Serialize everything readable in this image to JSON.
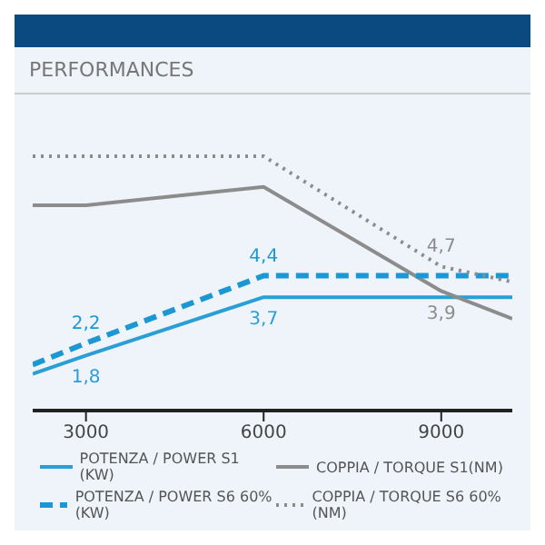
{
  "chart_data": {
    "type": "line",
    "title": "PERFORMANCES",
    "xlim": [
      2100,
      10200
    ],
    "xticks": [
      3000,
      6000,
      9000
    ],
    "legend": "bottom",
    "tick_labels": "x",
    "series": [
      {
        "name": "POTENZA / POWER S1 (KW)",
        "color": "#2a9fd6",
        "line_style": "solid",
        "x": [
          2100,
          3000,
          6000,
          9000,
          10200
        ],
        "values": [
          1.2,
          1.8,
          3.7,
          3.7,
          3.7
        ],
        "value_labels": [
          null,
          "1,8",
          "3,7",
          null,
          null
        ]
      },
      {
        "name": "COPPIA / TORQUE S1(NM)",
        "color": "#8c8c8c",
        "line_style": "solid",
        "x": [
          2100,
          3000,
          6000,
          9000,
          10200
        ],
        "values": [
          6.7,
          6.7,
          7.3,
          3.9,
          3.0
        ],
        "value_labels": [
          null,
          null,
          null,
          "3,9",
          null
        ]
      },
      {
        "name": "POTENZA / POWER S6 60% (KW)",
        "color": "#1b98d4",
        "line_style": "dashed",
        "x": [
          2100,
          3000,
          6000,
          9000,
          10200
        ],
        "values": [
          1.5,
          2.2,
          4.4,
          4.4,
          4.4
        ],
        "value_labels": [
          null,
          "2,2",
          "4,4",
          null,
          null
        ]
      },
      {
        "name": "COPPIA / TORQUE S6 60% (NM)",
        "color": "#8c8c8c",
        "line_style": "dotted",
        "x": [
          2100,
          6000,
          9000,
          10200
        ],
        "values": [
          8.3,
          8.3,
          4.7,
          4.2
        ],
        "value_labels": [
          null,
          null,
          "4,7",
          null
        ]
      }
    ]
  }
}
